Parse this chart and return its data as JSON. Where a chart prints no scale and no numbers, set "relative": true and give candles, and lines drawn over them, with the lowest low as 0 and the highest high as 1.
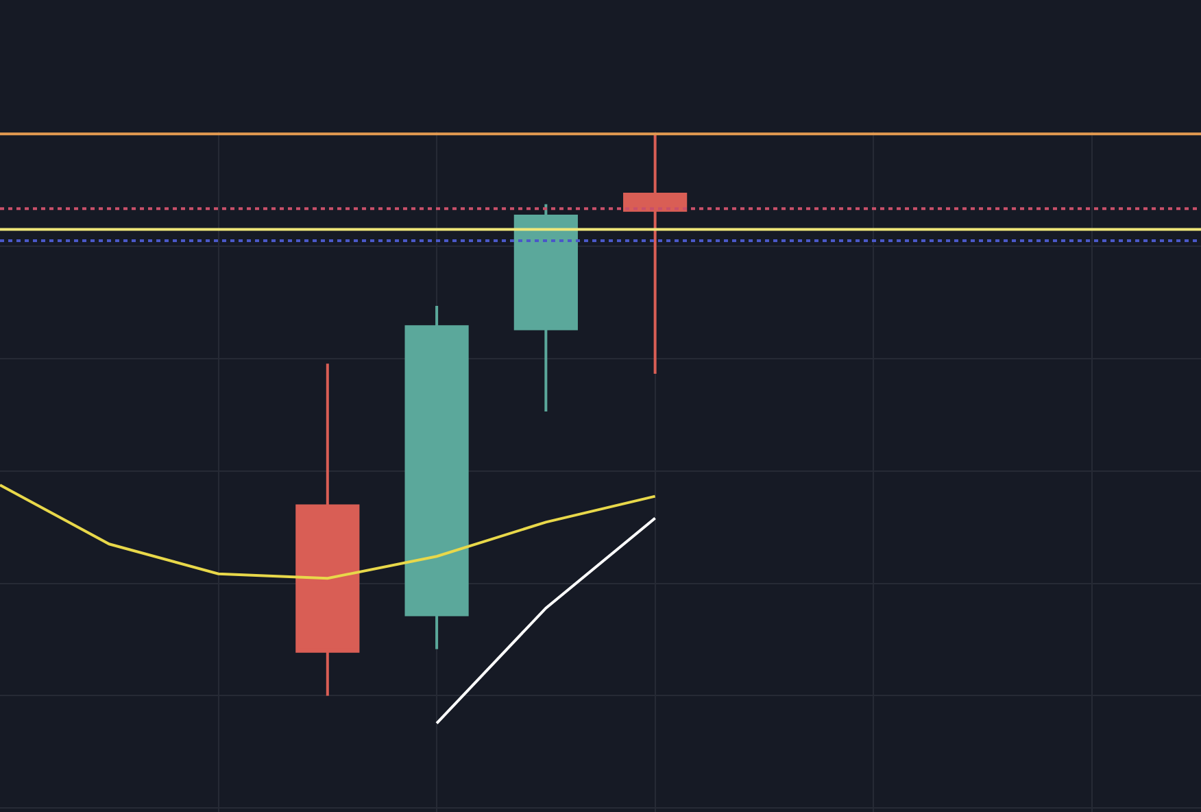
{
  "chart_data": {
    "type": "candlestick",
    "relative": true,
    "grid": true,
    "categories": [
      null,
      null,
      null,
      null,
      null,
      null,
      null,
      null,
      null,
      null,
      null,
      null
    ],
    "ohlc": [
      null,
      null,
      null,
      [
        0.338,
        0.591,
        0,
        0.079
      ],
      [
        0.144,
        0.694,
        0.083,
        0.657
      ],
      [
        0.653,
        0.875,
        0.506,
        0.854
      ],
      [
        0.893,
        1,
        0.573,
        0.864
      ],
      null,
      null,
      null,
      null,
      null
    ],
    "colors": [
      null,
      null,
      null,
      "#d95e55",
      "#5ba89b",
      "#5ba89b",
      "#d95e55",
      null,
      null,
      null,
      null,
      null
    ],
    "series": [
      {
        "type": "line",
        "color": "#e8d84a",
        "values": [
          0.375,
          0.27,
          0.217,
          0.209,
          0.248,
          0.309,
          0.355,
          null,
          null,
          null,
          null,
          null
        ]
      },
      {
        "type": "line",
        "color": "#ffffff",
        "values": [
          null,
          null,
          null,
          null,
          -0.049,
          0.156,
          0.316,
          null,
          null,
          null,
          null,
          null
        ]
      }
    ],
    "ref_lines": [
      {
        "axis": "y",
        "value": 1,
        "color": "#e39a50",
        "line_style": "solid"
      },
      {
        "axis": "y",
        "value": 0.867,
        "color": "#c9506a",
        "line_style": "dotted"
      },
      {
        "axis": "y",
        "value": 0.83,
        "color": "#f0e77a",
        "line_style": "solid"
      },
      {
        "axis": "y",
        "value": 0.81,
        "color": "#4a58c8",
        "line_style": "dotted"
      }
    ]
  }
}
